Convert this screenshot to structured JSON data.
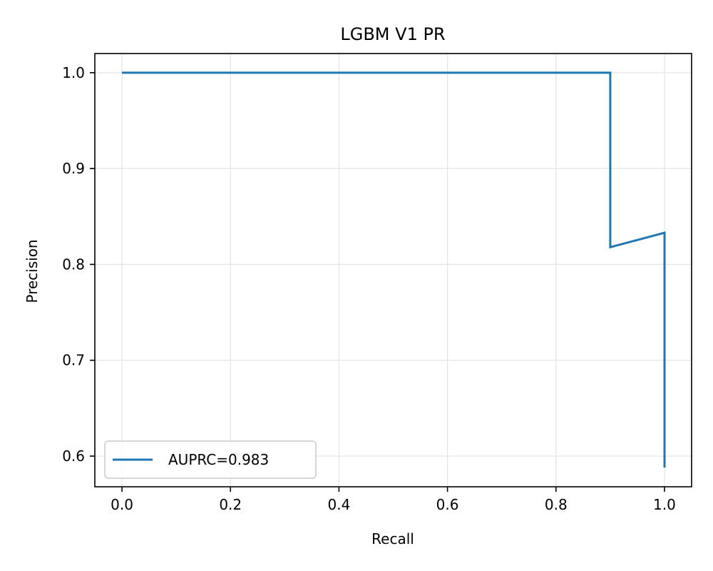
{
  "chart_data": {
    "type": "line",
    "title": "LGBM V1 PR",
    "xlabel": "Recall",
    "ylabel": "Precision",
    "xlim": [
      -0.05,
      1.05
    ],
    "ylim": [
      0.568,
      1.02
    ],
    "x_ticks": [
      0.0,
      0.2,
      0.4,
      0.6,
      0.8,
      1.0
    ],
    "x_tick_labels": [
      "0.0",
      "0.2",
      "0.4",
      "0.6",
      "0.8",
      "1.0"
    ],
    "y_ticks": [
      0.6,
      0.7,
      0.8,
      0.9,
      1.0
    ],
    "y_tick_labels": [
      "0.6",
      "0.7",
      "0.8",
      "0.9",
      "1.0"
    ],
    "grid": true,
    "legend_position": "lower-left",
    "series": [
      {
        "name": "AUPRC=0.983",
        "color": "#1f77b4",
        "x": [
          0.0,
          0.9,
          0.9,
          1.0,
          1.0
        ],
        "y": [
          1.0,
          1.0,
          0.818,
          0.833,
          0.588
        ]
      }
    ]
  }
}
